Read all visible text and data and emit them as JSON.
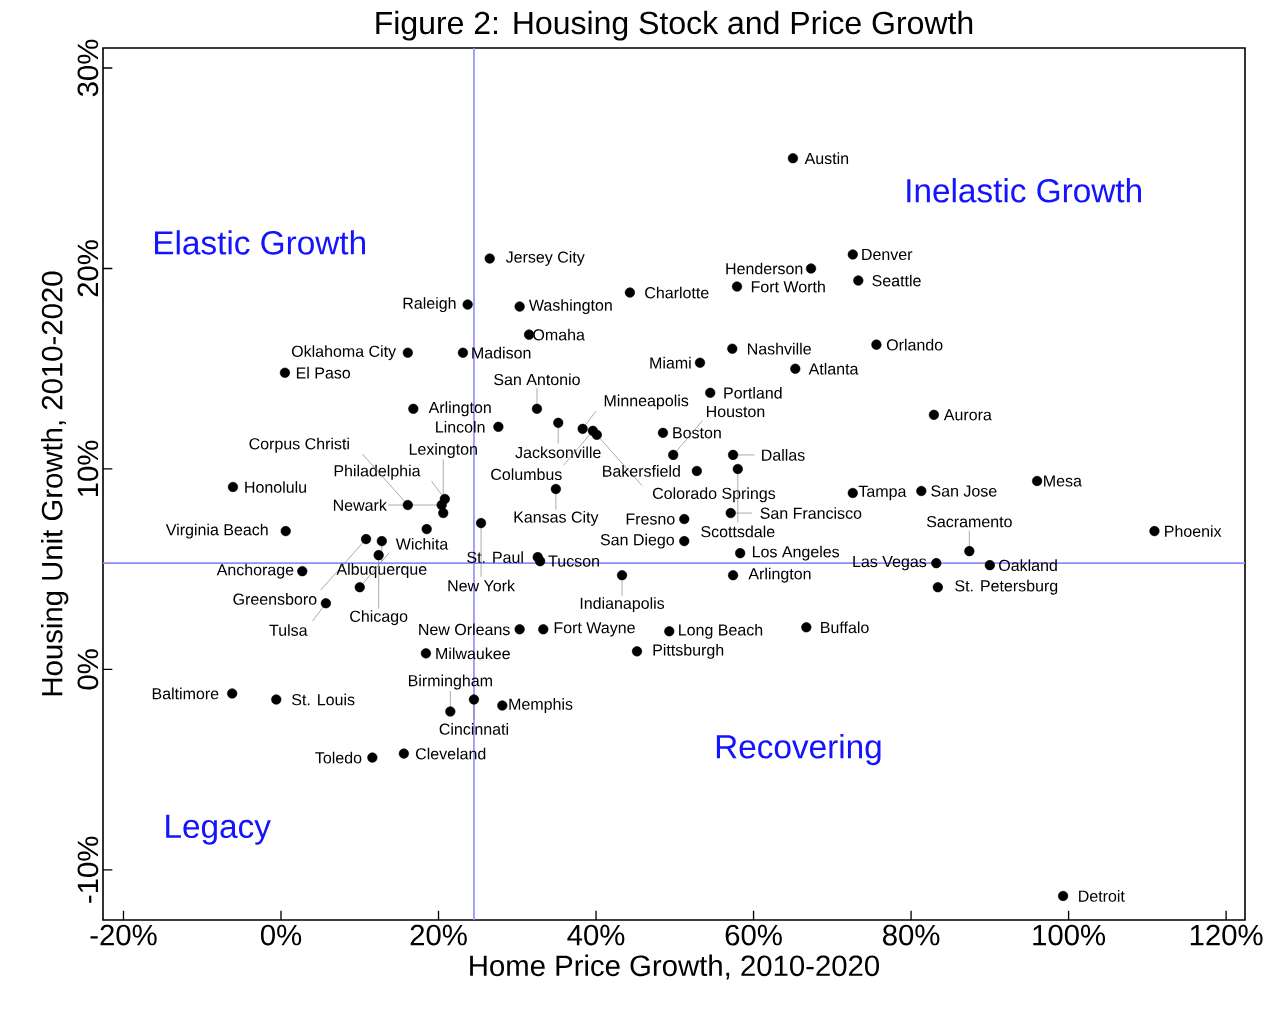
{
  "chart_data": {
    "type": "scatter",
    "title": "Figure 2: Housing Stock and Price Growth",
    "xlabel": "Home Price Growth, 2010-2020",
    "ylabel": "Housing Unit Growth, 2010-2020",
    "xlim": [
      -22.6,
      122.4
    ],
    "ylim": [
      -12.5,
      31.0
    ],
    "xticks": [
      {
        "value": -20,
        "label": "-20%"
      },
      {
        "value": 0,
        "label": "0%"
      },
      {
        "value": 20,
        "label": "20%"
      },
      {
        "value": 40,
        "label": "40%"
      },
      {
        "value": 60,
        "label": "60%"
      },
      {
        "value": 80,
        "label": "80%"
      },
      {
        "value": 100,
        "label": "100%"
      },
      {
        "value": 120,
        "label": "120%"
      }
    ],
    "yticks": [
      {
        "value": -10,
        "label": "-10%"
      },
      {
        "value": 0,
        "label": "0%"
      },
      {
        "value": 10,
        "label": "10%"
      },
      {
        "value": 20,
        "label": "20%"
      },
      {
        "value": 30,
        "label": "30%"
      }
    ],
    "marker": "circle",
    "grid": false,
    "series": [
      {
        "color": "#000000",
        "x": [
          65.0,
          72.6,
          67.3,
          73.3,
          57.9,
          44.3,
          26.5,
          30.3,
          23.7,
          31.5,
          16.1,
          23.1,
          0.5,
          16.8,
          32.5,
          35.2,
          27.6,
          38.3,
          39.6,
          40.1,
          48.5,
          49.8,
          57.3,
          53.2,
          54.5,
          65.3,
          75.6,
          82.9,
          57.4,
          58.0,
          52.8,
          34.9,
          51.2,
          51.2,
          57.1,
          72.6,
          81.3,
          96.0,
          110.9,
          87.4,
          83.2,
          90.0,
          83.4,
          58.3,
          43.3,
          57.4,
          66.7,
          49.3,
          45.2,
          33.3,
          30.3,
          32.6,
          32.9,
          99.3,
          20.8,
          20.4,
          16.1,
          20.6,
          25.4,
          10.8,
          18.5,
          12.8,
          12.4,
          0.6,
          2.7,
          -6.1,
          10.0,
          5.7,
          18.4,
          24.5,
          21.5,
          28.1,
          15.6,
          11.6,
          -6.2,
          -0.6
        ],
        "values": [
          25.5,
          20.7,
          20.0,
          19.4,
          19.1,
          18.8,
          20.5,
          18.1,
          18.2,
          16.7,
          15.8,
          15.8,
          14.8,
          13.0,
          13.0,
          12.3,
          12.1,
          12.0,
          11.9,
          11.7,
          11.8,
          10.7,
          16.0,
          15.3,
          13.8,
          15.0,
          16.2,
          12.7,
          10.7,
          10.0,
          9.9,
          9.0,
          7.5,
          6.4,
          7.8,
          8.8,
          8.9,
          9.4,
          6.9,
          5.9,
          5.3,
          5.2,
          4.1,
          5.8,
          4.7,
          4.7,
          2.1,
          1.9,
          0.9,
          2.0,
          2.0,
          5.6,
          5.4,
          -11.3,
          8.5,
          8.2,
          8.2,
          7.8,
          7.3,
          6.5,
          7.0,
          6.4,
          5.7,
          6.9,
          4.9,
          9.1,
          4.1,
          3.3,
          0.8,
          -1.5,
          -2.1,
          -1.8,
          -4.2,
          -4.4,
          -1.2,
          -1.5
        ]
      }
    ],
    "ref_lines": [
      {
        "axis": "x",
        "value": 24.5,
        "color": "#8c8cff"
      },
      {
        "axis": "y",
        "value": 5.3,
        "color": "#8c8cff"
      }
    ],
    "annotations": [
      "Elastic Growth",
      "Inelastic Growth",
      "Recovering",
      "Legacy",
      {
        "text": "Austin",
        "x": 65.0,
        "y": 25.5
      },
      {
        "text": "Denver",
        "x": 72.6,
        "y": 20.7
      },
      {
        "text": "Henderson",
        "x": 67.3,
        "y": 20.0
      },
      {
        "text": "Seattle",
        "x": 73.3,
        "y": 19.4
      },
      {
        "text": "Fort Worth",
        "x": 57.9,
        "y": 19.1
      },
      {
        "text": "Charlotte",
        "x": 44.3,
        "y": 18.8
      },
      {
        "text": "Jersey City",
        "x": 26.5,
        "y": 20.5
      },
      {
        "text": "Washington",
        "x": 30.3,
        "y": 18.1
      },
      {
        "text": "Raleigh",
        "x": 23.7,
        "y": 18.2
      },
      {
        "text": "Omaha",
        "x": 31.5,
        "y": 16.7
      },
      {
        "text": "Oklahoma City",
        "x": 16.1,
        "y": 15.8
      },
      {
        "text": "Madison",
        "x": 23.1,
        "y": 15.8
      },
      {
        "text": "El Paso",
        "x": 0.5,
        "y": 14.8
      },
      {
        "text": "Arlington",
        "x": 16.8,
        "y": 13.0
      },
      {
        "text": "San Antonio",
        "x": 32.5,
        "y": 13.0
      },
      {
        "text": "Jacksonville",
        "x": 35.2,
        "y": 12.3
      },
      {
        "text": "Lincoln",
        "x": 27.6,
        "y": 12.1
      },
      {
        "text": "Minneapolis",
        "x": 38.3,
        "y": 12.0
      },
      {
        "text": "Columbus",
        "x": 39.6,
        "y": 11.9
      },
      {
        "text": "Colorado Springs",
        "x": 40.1,
        "y": 11.7
      },
      {
        "text": "Boston",
        "x": 48.5,
        "y": 11.8
      },
      {
        "text": "Houston",
        "x": 49.8,
        "y": 10.7
      },
      {
        "text": "Nashville",
        "x": 57.3,
        "y": 16.0
      },
      {
        "text": "Miami",
        "x": 53.2,
        "y": 15.3
      },
      {
        "text": "Portland",
        "x": 54.5,
        "y": 13.8
      },
      {
        "text": "Atlanta",
        "x": 65.3,
        "y": 15.0
      },
      {
        "text": "Orlando",
        "x": 75.6,
        "y": 16.2
      },
      {
        "text": "Aurora",
        "x": 82.9,
        "y": 12.7
      },
      {
        "text": "Dallas",
        "x": 57.4,
        "y": 10.7
      },
      {
        "text": "Scottsdale",
        "x": 58.0,
        "y": 10.0
      },
      {
        "text": "Bakersfield",
        "x": 52.8,
        "y": 9.9
      },
      {
        "text": "Kansas City",
        "x": 34.9,
        "y": 9.0
      },
      {
        "text": "Fresno",
        "x": 51.2,
        "y": 7.5
      },
      {
        "text": "San Diego",
        "x": 51.2,
        "y": 6.4
      },
      {
        "text": "San Francisco",
        "x": 57.1,
        "y": 7.8
      },
      {
        "text": "Tampa",
        "x": 72.6,
        "y": 8.8
      },
      {
        "text": "San Jose",
        "x": 81.3,
        "y": 8.9
      },
      {
        "text": "Mesa",
        "x": 96.0,
        "y": 9.4
      },
      {
        "text": "Phoenix",
        "x": 110.9,
        "y": 6.9
      },
      {
        "text": "Sacramento",
        "x": 87.4,
        "y": 5.9
      },
      {
        "text": "Las Vegas",
        "x": 83.2,
        "y": 5.3
      },
      {
        "text": "Oakland",
        "x": 90.0,
        "y": 5.2
      },
      {
        "text": "St. Petersburg",
        "x": 83.4,
        "y": 4.1
      },
      {
        "text": "Los Angeles",
        "x": 58.3,
        "y": 5.8
      },
      {
        "text": "Indianapolis",
        "x": 43.3,
        "y": 4.7
      },
      {
        "text": "Arlington",
        "x": 57.4,
        "y": 4.7
      },
      {
        "text": "Buffalo",
        "x": 66.7,
        "y": 2.1
      },
      {
        "text": "Long Beach",
        "x": 49.3,
        "y": 1.9
      },
      {
        "text": "Pittsburgh",
        "x": 45.2,
        "y": 0.9
      },
      {
        "text": "Fort Wayne",
        "x": 33.3,
        "y": 2.0
      },
      {
        "text": "New Orleans",
        "x": 30.3,
        "y": 2.0
      },
      {
        "text": "St. Paul",
        "x": 32.6,
        "y": 5.6
      },
      {
        "text": "Tucson",
        "x": 32.9,
        "y": 5.4
      },
      {
        "text": "Detroit",
        "x": 99.3,
        "y": -11.3
      },
      {
        "text": "Philadelphia",
        "x": 20.8,
        "y": 8.5
      },
      {
        "text": "Newark",
        "x": 20.4,
        "y": 8.2
      },
      {
        "text": "Corpus Christi",
        "x": 16.1,
        "y": 8.2
      },
      {
        "text": "Lexington",
        "x": 20.6,
        "y": 7.8
      },
      {
        "text": "New York",
        "x": 25.4,
        "y": 7.3
      },
      {
        "text": "Greensboro",
        "x": 10.8,
        "y": 6.5
      },
      {
        "text": "Albuquerque",
        "x": 12.8,
        "y": 6.4
      },
      {
        "text": "Chicago",
        "x": 12.4,
        "y": 5.7
      },
      {
        "text": "Virginia Beach",
        "x": 0.6,
        "y": 6.9
      },
      {
        "text": "Anchorage",
        "x": 2.7,
        "y": 4.9
      },
      {
        "text": "Honolulu",
        "x": -6.1,
        "y": 9.1
      },
      {
        "text": "Wichita",
        "x": 10.0,
        "y": 4.1
      },
      {
        "text": "Tulsa",
        "x": 5.7,
        "y": 3.3
      },
      {
        "text": "Milwaukee",
        "x": 18.4,
        "y": 0.8
      },
      {
        "text": "Cincinnati",
        "x": 24.5,
        "y": -1.5
      },
      {
        "text": "Birmingham",
        "x": 21.5,
        "y": -2.1
      },
      {
        "text": "Memphis",
        "x": 28.1,
        "y": -1.8
      },
      {
        "text": "Cleveland",
        "x": 15.6,
        "y": -4.2
      },
      {
        "text": "Toledo",
        "x": 11.6,
        "y": -4.4
      },
      {
        "text": "Baltimore",
        "x": -6.2,
        "y": -1.2
      },
      {
        "text": "St. Louis",
        "x": -0.6,
        "y": -1.5
      }
    ]
  }
}
